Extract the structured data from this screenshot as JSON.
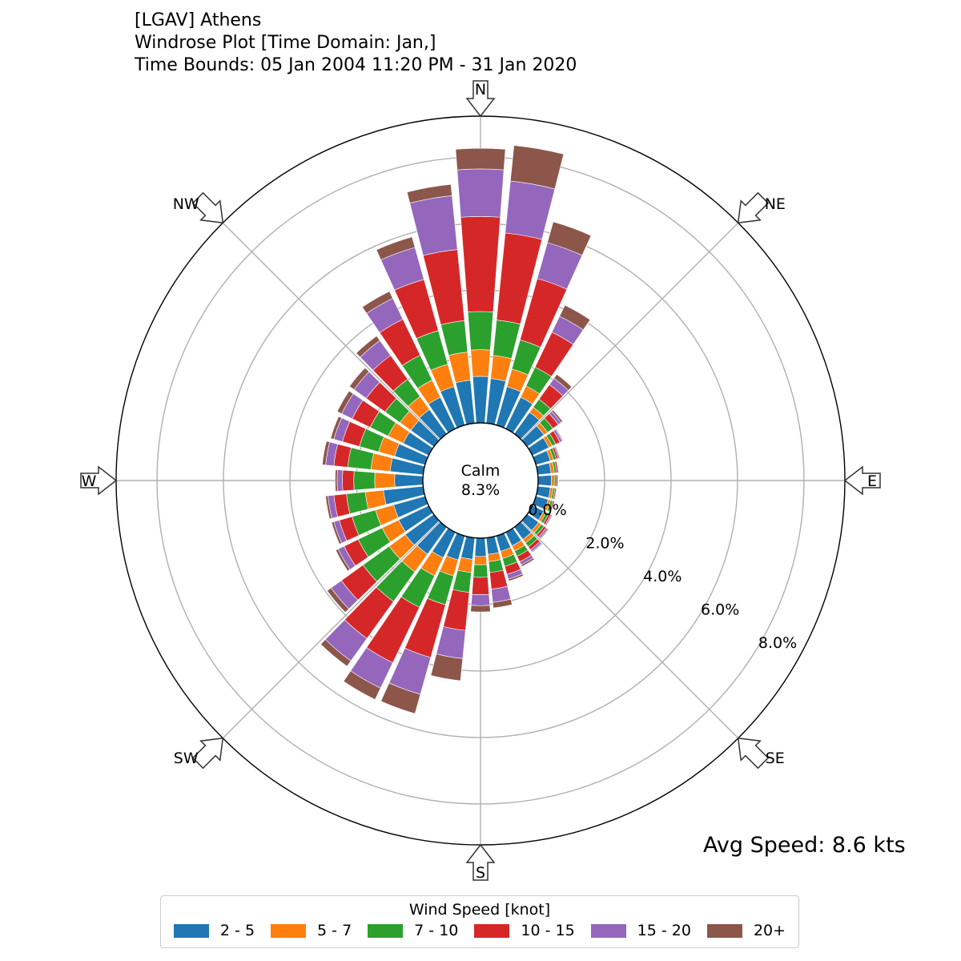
{
  "title": {
    "line1": "[LGAV] Athens",
    "line2": "Windrose Plot [Time Domain: Jan,]",
    "line3": "Time Bounds: 05 Jan 2004 11:20 PM - 31 Jan 2020"
  },
  "avg_speed": "Avg Speed: 8.6 kts",
  "legend": {
    "title": "Wind Speed [knot]",
    "items": [
      {
        "label": "2 - 5",
        "color": "#1f77b4"
      },
      {
        "label": "5 - 7",
        "color": "#ff7f0e"
      },
      {
        "label": "7 - 10",
        "color": "#2ca02c"
      },
      {
        "label": "10 - 15",
        "color": "#d62728"
      },
      {
        "label": "15 - 20",
        "color": "#9467bd"
      },
      {
        "label": "20+",
        "color": "#8c564b"
      }
    ]
  },
  "chart_data": {
    "type": "windrose",
    "calm_label": "Calm",
    "calm_value": "8.3%",
    "radial_ticks": [
      "0.0%",
      "2.0%",
      "4.0%",
      "6.0%",
      "8.0%"
    ],
    "radial_max": 9.23,
    "compass_labels": [
      "N",
      "NE",
      "E",
      "SE",
      "S",
      "SW",
      "W",
      "NW"
    ],
    "direction_step_deg": 10,
    "bins": [
      "2 - 5",
      "5 - 7",
      "7 - 10",
      "10 - 15",
      "15 - 20",
      "20+"
    ],
    "directions_deg": [
      0,
      10,
      20,
      30,
      40,
      50,
      60,
      70,
      80,
      90,
      100,
      110,
      120,
      130,
      140,
      150,
      160,
      170,
      180,
      190,
      200,
      210,
      220,
      230,
      240,
      250,
      260,
      270,
      280,
      290,
      300,
      310,
      320,
      330,
      340,
      350
    ],
    "cumulative_percent": [
      [
        1.4,
        2.2,
        3.35,
        6.21,
        7.64,
        8.26
      ],
      [
        1.35,
        2.05,
        3.12,
        5.75,
        7.32,
        8.4
      ],
      [
        1.2,
        1.75,
        2.66,
        4.58,
        5.7,
        6.35
      ],
      [
        1.05,
        1.42,
        2.05,
        3.22,
        3.75,
        4.12
      ],
      [
        0.8,
        0.98,
        1.28,
        1.82,
        2.05,
        2.2
      ],
      [
        0.62,
        0.75,
        0.95,
        1.15,
        1.25,
        1.31
      ],
      [
        0.55,
        0.66,
        0.78,
        0.92,
        0.99,
        1.02
      ],
      [
        0.45,
        0.55,
        0.64,
        0.7,
        0.74,
        0.76
      ],
      [
        0.4,
        0.5,
        0.57,
        0.62,
        0.64,
        0.65
      ],
      [
        0.4,
        0.49,
        0.55,
        0.59,
        0.61,
        0.62
      ],
      [
        0.38,
        0.46,
        0.52,
        0.56,
        0.58,
        0.59
      ],
      [
        0.38,
        0.46,
        0.53,
        0.58,
        0.6,
        0.61
      ],
      [
        0.38,
        0.46,
        0.55,
        0.62,
        0.66,
        0.68
      ],
      [
        0.42,
        0.52,
        0.62,
        0.7,
        0.76,
        0.79
      ],
      [
        0.45,
        0.58,
        0.72,
        0.83,
        0.9,
        0.93
      ],
      [
        0.45,
        0.62,
        0.8,
        0.98,
        1.08,
        1.14
      ],
      [
        0.48,
        0.7,
        0.95,
        1.2,
        1.35,
        1.41
      ],
      [
        0.5,
        0.72,
        1.05,
        1.55,
        1.95,
        2.12
      ],
      [
        0.55,
        0.8,
        1.18,
        1.7,
        2.03,
        2.22
      ],
      [
        0.65,
        1.05,
        1.65,
        2.8,
        3.65,
        4.32
      ],
      [
        0.75,
        1.25,
        2.15,
        3.8,
        4.95,
        5.55
      ],
      [
        0.85,
        1.45,
        2.5,
        4.35,
        5.2,
        5.58
      ],
      [
        1.0,
        1.65,
        2.75,
        4.12,
        4.95,
        5.15
      ],
      [
        1.05,
        1.65,
        2.62,
        3.42,
        3.8,
        3.95
      ],
      [
        1.0,
        1.55,
        2.35,
        2.82,
        3.02,
        3.1
      ],
      [
        0.98,
        1.55,
        2.28,
        2.68,
        2.85,
        2.92
      ],
      [
        1.2,
        1.75,
        2.32,
        2.7,
        2.88,
        2.95
      ],
      [
        0.85,
        1.45,
        2.08,
        2.42,
        2.58,
        2.64
      ],
      [
        1.0,
        1.58,
        2.28,
        2.7,
        2.95,
        3.05
      ],
      [
        0.95,
        1.45,
        2.05,
        2.58,
        2.85,
        2.95
      ],
      [
        0.85,
        1.35,
        1.95,
        2.55,
        2.9,
        3.05
      ],
      [
        0.85,
        1.25,
        1.8,
        2.5,
        2.95,
        3.12
      ],
      [
        0.9,
        1.38,
        2.02,
        2.9,
        3.45,
        3.62
      ],
      [
        1.05,
        1.62,
        2.45,
        3.65,
        4.35,
        4.58
      ],
      [
        1.2,
        1.9,
        2.95,
        4.55,
        5.55,
        5.88
      ],
      [
        1.3,
        2.15,
        3.1,
        5.25,
        6.88,
        7.22
      ]
    ]
  }
}
